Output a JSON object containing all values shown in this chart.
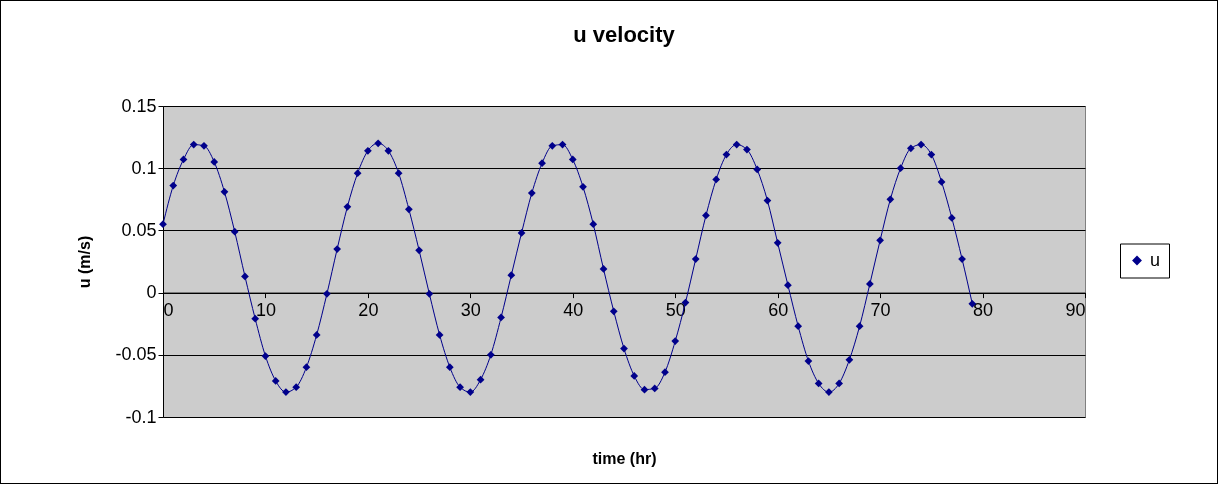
{
  "chart_data": {
    "type": "line",
    "title": "u velocity",
    "xlabel": "time (hr)",
    "ylabel": "u (m/s)",
    "x": [
      0,
      1,
      2,
      3,
      4,
      5,
      6,
      7,
      8,
      9,
      10,
      11,
      12,
      13,
      14,
      15,
      16,
      17,
      18,
      19,
      20,
      21,
      22,
      23,
      24,
      25,
      26,
      27,
      28,
      29,
      30,
      31,
      32,
      33,
      34,
      35,
      36,
      37,
      38,
      39,
      40,
      41,
      42,
      43,
      44,
      45,
      46,
      47,
      48,
      49,
      50,
      51,
      52,
      53,
      54,
      55,
      56,
      57,
      58,
      59,
      60,
      61,
      62,
      63,
      64,
      65,
      66,
      67,
      68,
      69,
      70,
      71,
      72,
      73,
      74,
      75,
      76,
      77,
      78,
      79
    ],
    "series": [
      {
        "name": "u",
        "color": "#00008b",
        "values": [
          0.055,
          0.086,
          0.107,
          0.119,
          0.118,
          0.105,
          0.081,
          0.049,
          0.013,
          -0.021,
          -0.051,
          -0.071,
          -0.08,
          -0.076,
          -0.06,
          -0.034,
          -0.001,
          0.035,
          0.069,
          0.096,
          0.114,
          0.12,
          0.114,
          0.096,
          0.067,
          0.034,
          -0.001,
          -0.034,
          -0.06,
          -0.076,
          -0.08,
          -0.07,
          -0.05,
          -0.02,
          0.014,
          0.048,
          0.08,
          0.104,
          0.118,
          0.119,
          0.107,
          0.085,
          0.055,
          0.019,
          -0.015,
          -0.045,
          -0.067,
          -0.078,
          -0.077,
          -0.064,
          -0.039,
          -0.008,
          0.027,
          0.062,
          0.091,
          0.111,
          0.119,
          0.115,
          0.099,
          0.074,
          0.04,
          0.006,
          -0.027,
          -0.055,
          -0.073,
          -0.08,
          -0.073,
          -0.054,
          -0.027,
          0.007,
          0.042,
          0.075,
          0.1,
          0.116,
          0.119,
          0.111,
          0.089,
          0.06,
          0.027,
          -0.009
        ]
      }
    ],
    "xlim": [
      0,
      90
    ],
    "xticks": [
      0,
      10,
      20,
      30,
      40,
      50,
      60,
      70,
      80,
      90
    ],
    "ylim": [
      -0.1,
      0.15
    ],
    "yticks": [
      -0.1,
      -0.05,
      0,
      0.05,
      0.1,
      0.15
    ],
    "grid": "y",
    "legend": "right",
    "marker": "diamond",
    "line_style": "solid"
  }
}
